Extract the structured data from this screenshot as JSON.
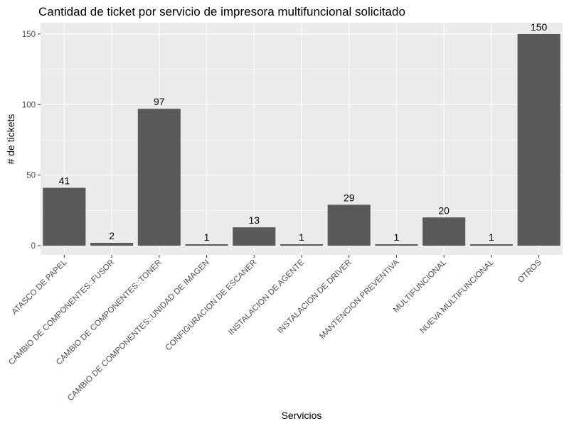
{
  "chart_data": {
    "type": "bar",
    "title": "Cantidad de ticket por servicio de impresora multifuncional solicitado",
    "xlabel": "Servicios",
    "ylabel": "# de tickets",
    "categories": [
      "ATASCO DE PAPEL",
      "CAMBIO DE COMPONENTES::FUSOR",
      "CAMBIO DE COMPONENTES::TONER",
      "CAMBIO DE COMPONENTES::UNIDAD DE IMAGEN",
      "CONFIGURACION DE ESCANER",
      "INSTALACION DE AGENTE",
      "INSTALACION DE DRIVER",
      "MANTENCION PREVENTIVA",
      "MULTIFUNCIONAL",
      "NUEVA MULTIFUNCIONAL",
      "OTROS"
    ],
    "values": [
      41,
      2,
      97,
      1,
      13,
      1,
      29,
      1,
      20,
      1,
      150
    ],
    "data_labels": [
      "41",
      "2",
      "97",
      "1",
      "13",
      "1",
      "29",
      "1",
      "20",
      "1",
      "150"
    ],
    "ylim": [
      0,
      158
    ],
    "yticks": [
      0,
      50,
      100,
      150
    ],
    "ytick_labels": [
      "0",
      "50",
      "100",
      "150"
    ],
    "grid": true,
    "colors": {
      "bar": "#595959",
      "panel": "#ebebeb",
      "grid_major": "#ffffff",
      "grid_minor": "#f5f5f5"
    }
  }
}
